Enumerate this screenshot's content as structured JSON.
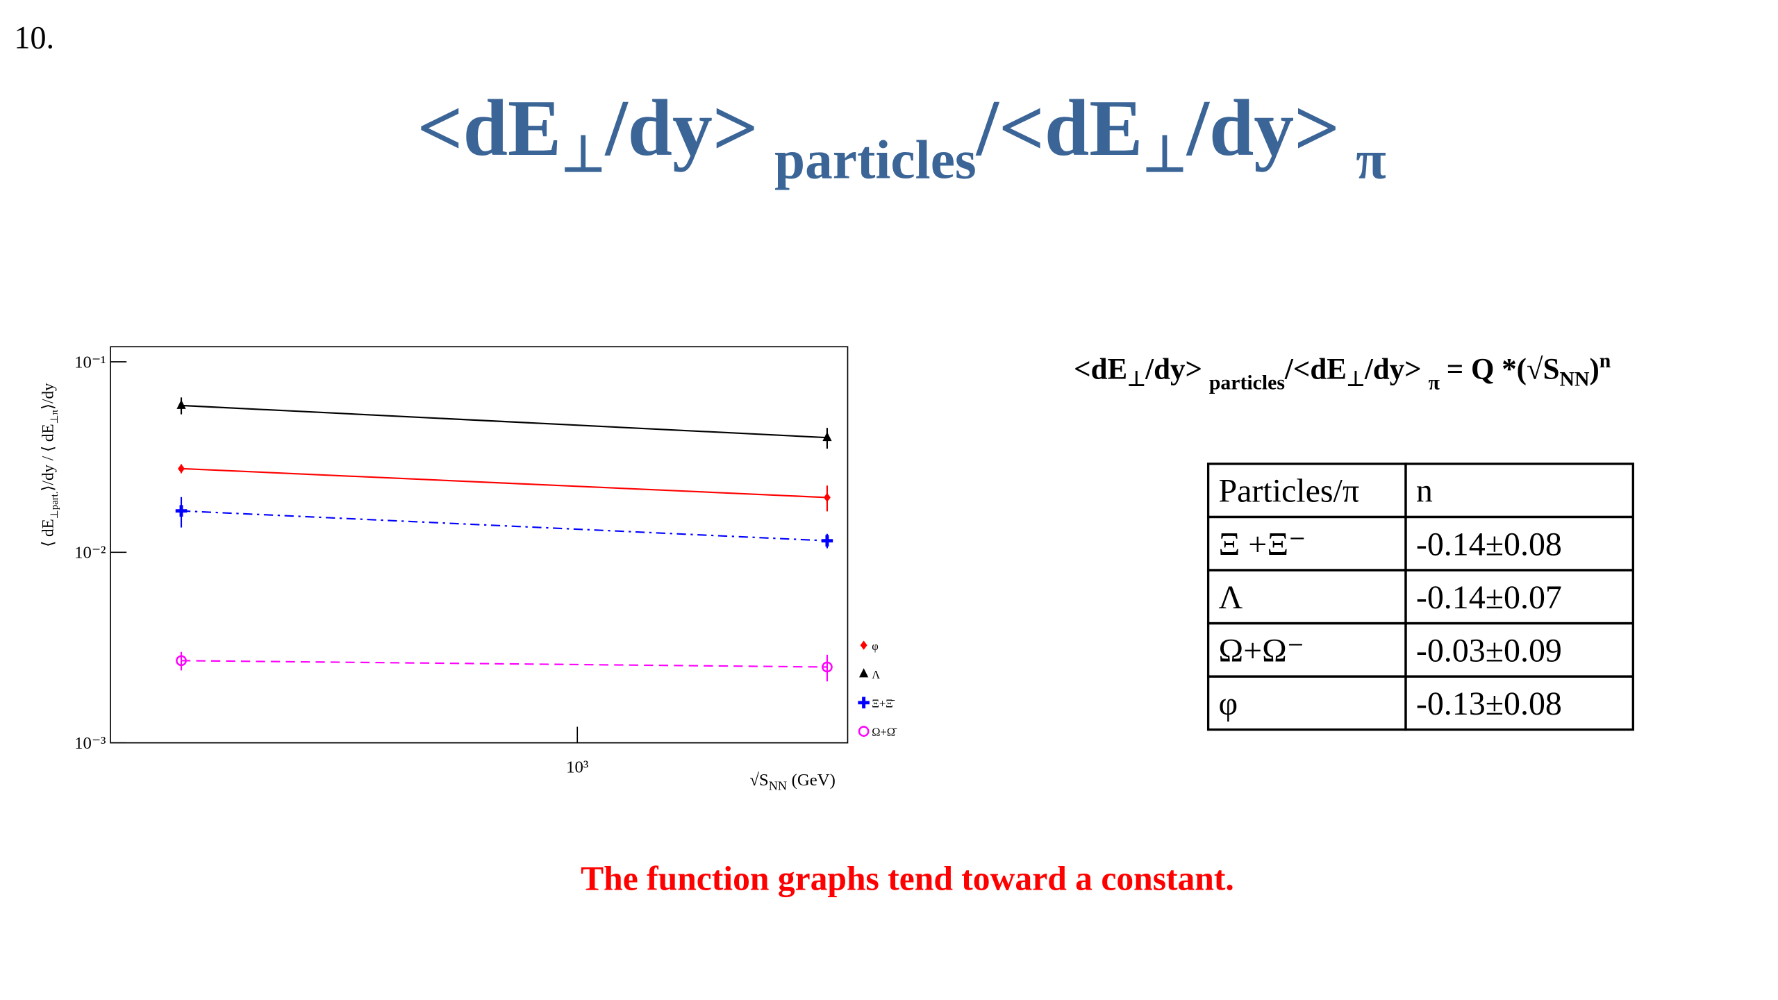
{
  "slide_number": "10.",
  "title": [
    "<dE",
    "⊥",
    "/dy>",
    "particles",
    "/<dE",
    "⊥",
    "/dy>",
    "π"
  ],
  "chart_data": {
    "type": "scatter",
    "log_x": true,
    "log_y": true,
    "x_label": [
      "√S",
      "NN",
      "(GeV)"
    ],
    "y_label": [
      "⟨ dE",
      "⊥part.",
      "⟩/dy / ⟨ dE",
      "⊥π",
      "⟩/dy"
    ],
    "x": [
      200,
      2760
    ],
    "xlim": [
      150,
      3000
    ],
    "xticks": [
      {
        "value": 1000,
        "label": "10³"
      }
    ],
    "ylim": [
      0.001,
      0.12
    ],
    "yticks": [
      {
        "value": 0.001,
        "label": "10⁻³"
      },
      {
        "value": 0.01,
        "label": "10⁻²"
      },
      {
        "value": 0.1,
        "label": "10⁻¹"
      }
    ],
    "series": [
      {
        "name": "φ",
        "color": "#ff0000",
        "marker": "diamond",
        "dash": "solid",
        "values": [
          0.0275,
          0.0194
        ],
        "errors": [
          0.0015,
          0.003
        ]
      },
      {
        "name": "Λ",
        "color": "#000000",
        "marker": "triangle",
        "dash": "solid",
        "values": [
          0.059,
          0.04
        ],
        "errors": [
          0.006,
          0.005
        ]
      },
      {
        "name": "Ξ+Ξ̄",
        "color": "#0000ff",
        "marker": "cross",
        "dash": "dashdot",
        "values": [
          0.0165,
          0.0115
        ],
        "errors": [
          0.003,
          0.001
        ]
      },
      {
        "name": "Ω+Ω̄",
        "color": "#ff00ff",
        "marker": "circle",
        "dash": "dashed",
        "values": [
          0.0027,
          0.0025
        ],
        "errors": [
          0.0003,
          0.0004
        ]
      }
    ]
  },
  "formula": [
    "<dE",
    "⊥",
    "/dy>",
    "particles",
    "/<dE",
    "⊥",
    "/dy>",
    "π",
    "= Q *(√S",
    "NN",
    ")",
    "n"
  ],
  "table": {
    "header": [
      "Particles/π",
      "n"
    ],
    "rows": [
      [
        "Ξ +Ξ⁻",
        "-0.14±0.08"
      ],
      [
        "Λ",
        "-0.14±0.07"
      ],
      [
        "Ω+Ω⁻",
        "-0.03±0.09"
      ],
      [
        "φ",
        "-0.13±0.08"
      ]
    ]
  },
  "caption": "The function graphs tend toward a constant."
}
